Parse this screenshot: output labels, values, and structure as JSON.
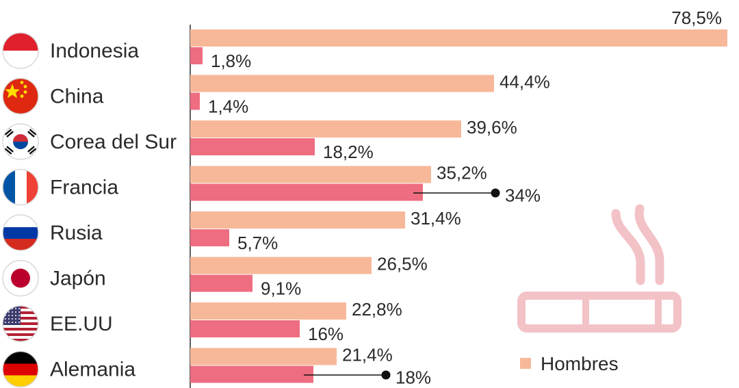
{
  "chart_data": {
    "type": "bar",
    "orientation": "horizontal",
    "categories": [
      "Indonesia",
      "China",
      "Corea del Sur",
      "Francia",
      "Rusia",
      "Japón",
      "EE.UU",
      "Alemania"
    ],
    "category_icons": [
      "indonesia-flag-icon",
      "china-flag-icon",
      "south-korea-flag-icon",
      "france-flag-icon",
      "russia-flag-icon",
      "japan-flag-icon",
      "usa-flag-icon",
      "germany-flag-icon"
    ],
    "series": [
      {
        "name": "Hombres",
        "color": "#f7b89a",
        "values": [
          78.5,
          44.4,
          39.6,
          35.2,
          31.4,
          26.5,
          22.8,
          21.4
        ],
        "labels": [
          "78,5%",
          "44,4%",
          "39,6%",
          "35,2%",
          "31,4%",
          "26,5%",
          "22,8%",
          "21,4%"
        ]
      },
      {
        "name": "",
        "color": "#ee6d80",
        "values": [
          1.8,
          1.4,
          18.2,
          34,
          5.7,
          9.1,
          16,
          18
        ],
        "labels": [
          "1,8%",
          "1,4%",
          "18,2%",
          "34%",
          "5,7%",
          "9,1%",
          "16%",
          "18%"
        ]
      }
    ],
    "callout_categories": [
      "Francia",
      "Alemania"
    ],
    "xlim": [
      0,
      78.5
    ],
    "legend": {
      "position": "bottom-right",
      "entries": [
        "Hombres"
      ]
    },
    "decoration_icon": "cigarette-icon",
    "decoration_color": "#f2c2c7",
    "grid": false,
    "title": "",
    "xlabel": "",
    "ylabel": ""
  }
}
